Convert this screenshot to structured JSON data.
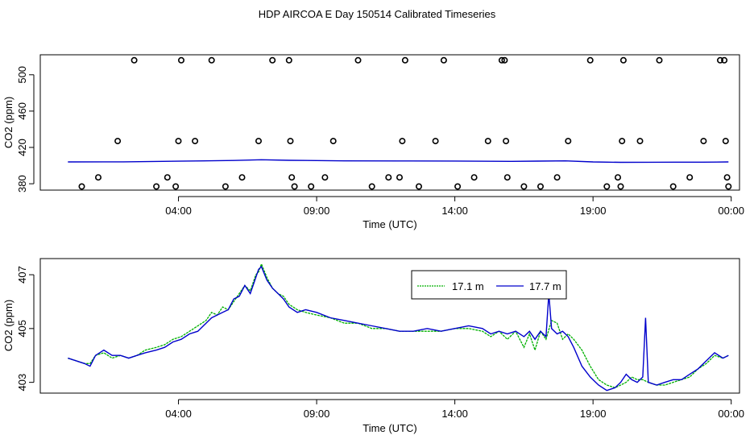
{
  "title": "HDP AIRCOA E  Day 150514  Calibrated Timeseries",
  "colors": {
    "series_green": "#00b000",
    "series_blue": "#0000cc",
    "axes": "#000000",
    "background": "#ffffff"
  },
  "chart_data": [
    {
      "type": "scatter",
      "title": "HDP AIRCOA E  Day 150514  Calibrated Timeseries",
      "xlabel": "Time (UTC)",
      "ylabel": "CO2 (ppm)",
      "x_unit": "hours UTC",
      "xlim": [
        -1.0,
        24.3
      ],
      "ylim": [
        373,
        522
      ],
      "xticks": [
        4,
        9,
        14,
        19,
        24
      ],
      "xtick_labels": [
        "04:00",
        "09:00",
        "14:00",
        "19:00",
        "00:00"
      ],
      "yticks": [
        380,
        420,
        460,
        500
      ],
      "ytick_labels": [
        "380",
        "420",
        "460",
        "500"
      ],
      "grid": false,
      "series": [
        {
          "marker": "open-circle",
          "x": [
            0.5,
            1.1,
            1.8,
            2.4,
            3.2,
            3.6,
            3.9,
            4.0,
            4.1,
            4.6,
            5.2,
            5.7,
            6.3,
            6.9,
            7.4,
            8.0,
            8.05,
            8.1,
            8.2,
            8.8,
            9.3,
            9.6,
            10.5,
            11.0,
            11.6,
            12.0,
            12.1,
            12.2,
            12.7,
            13.3,
            13.6,
            14.1,
            14.7,
            15.2,
            15.7,
            15.8,
            15.85,
            15.9,
            16.5,
            17.1,
            17.7,
            18.1,
            18.9,
            19.5,
            19.9,
            20.0,
            20.05,
            20.1,
            20.7,
            21.4,
            21.9,
            22.5,
            23.0,
            23.6,
            23.75,
            23.8,
            23.85,
            23.9
          ],
          "y": [
            377,
            387,
            427,
            516,
            377,
            387,
            377,
            427,
            516,
            427,
            516,
            377,
            387,
            427,
            516,
            516,
            427,
            387,
            377,
            377,
            387,
            427,
            516,
            377,
            387,
            387,
            427,
            516,
            377,
            427,
            516,
            377,
            387,
            427,
            516,
            516,
            427,
            387,
            377,
            377,
            387,
            427,
            516,
            377,
            387,
            377,
            427,
            516,
            427,
            516,
            377,
            387,
            427,
            516,
            516,
            427,
            387,
            377
          ]
        },
        {
          "type": "line",
          "x": [
            0.0,
            2.0,
            4.0,
            6.0,
            7.0,
            8.0,
            10.0,
            12.0,
            14.0,
            16.0,
            17.0,
            18.0,
            19.0,
            20.0,
            21.0,
            22.0,
            23.0,
            23.9
          ],
          "y": [
            404.0,
            404.1,
            404.8,
            405.6,
            406.4,
            405.8,
            405.2,
            405.1,
            405.0,
            404.7,
            404.9,
            405.2,
            404.0,
            403.6,
            403.7,
            403.8,
            403.8,
            404.0
          ]
        }
      ]
    },
    {
      "type": "line",
      "xlabel": "Time (UTC)",
      "ylabel": "CO2 (ppm)",
      "x_unit": "hours UTC",
      "xlim": [
        -1.0,
        24.3
      ],
      "ylim": [
        402.6,
        407.6
      ],
      "xticks": [
        4,
        9,
        14,
        19,
        24
      ],
      "xtick_labels": [
        "04:00",
        "09:00",
        "14:00",
        "19:00",
        "00:00"
      ],
      "yticks": [
        403,
        405,
        407
      ],
      "ytick_labels": [
        "403",
        "405",
        "407"
      ],
      "grid": false,
      "legend": {
        "placement": "top-center-right",
        "entries": [
          "17.1 m",
          "17.7 m"
        ]
      },
      "series": [
        {
          "name": "17.1 m",
          "x": [
            0.0,
            0.3,
            0.6,
            0.8,
            1.0,
            1.3,
            1.6,
            1.9,
            2.2,
            2.5,
            2.8,
            3.2,
            3.5,
            3.8,
            4.1,
            4.4,
            4.7,
            5.0,
            5.2,
            5.4,
            5.6,
            5.8,
            6.0,
            6.2,
            6.4,
            6.6,
            6.8,
            6.9,
            7.0,
            7.2,
            7.4,
            7.6,
            7.8,
            8.0,
            8.3,
            8.6,
            9.0,
            9.5,
            10.0,
            10.5,
            11.0,
            11.5,
            12.0,
            12.5,
            13.0,
            13.5,
            14.0,
            14.5,
            15.0,
            15.3,
            15.6,
            15.9,
            16.2,
            16.5,
            16.7,
            16.9,
            17.1,
            17.3,
            17.5,
            17.7,
            17.9,
            18.1,
            18.3,
            18.6,
            18.9,
            19.2,
            19.5,
            19.8,
            20.0,
            20.2,
            20.4,
            20.6,
            20.8,
            21.0,
            21.3,
            21.6,
            21.9,
            22.2,
            22.5,
            22.8,
            23.1,
            23.4,
            23.7,
            23.9
          ],
          "y": [
            403.9,
            403.8,
            403.7,
            403.7,
            404.0,
            404.1,
            403.9,
            404.0,
            403.9,
            404.0,
            404.2,
            404.3,
            404.4,
            404.6,
            404.7,
            404.9,
            405.1,
            405.3,
            405.6,
            405.5,
            405.8,
            405.7,
            406.0,
            406.3,
            406.6,
            406.4,
            407.0,
            407.1,
            407.4,
            406.9,
            406.5,
            406.3,
            406.2,
            405.9,
            405.7,
            405.6,
            405.5,
            405.4,
            405.2,
            405.2,
            405.0,
            405.0,
            404.9,
            404.9,
            404.9,
            404.9,
            405.0,
            405.0,
            404.9,
            404.7,
            404.9,
            404.6,
            404.9,
            404.3,
            404.8,
            404.2,
            404.9,
            404.6,
            405.3,
            405.2,
            404.6,
            404.8,
            404.6,
            404.2,
            403.6,
            403.1,
            402.9,
            402.8,
            402.9,
            403.0,
            403.2,
            403.1,
            403.1,
            403.0,
            402.9,
            402.9,
            403.0,
            403.1,
            403.2,
            403.5,
            403.7,
            404.0,
            403.9,
            404.0
          ]
        },
        {
          "name": "17.7 m",
          "x": [
            0.0,
            0.3,
            0.6,
            0.8,
            1.0,
            1.3,
            1.6,
            1.9,
            2.2,
            2.5,
            2.8,
            3.2,
            3.5,
            3.8,
            4.1,
            4.4,
            4.7,
            5.0,
            5.2,
            5.4,
            5.6,
            5.8,
            6.0,
            6.2,
            6.4,
            6.6,
            6.8,
            6.9,
            7.0,
            7.2,
            7.4,
            7.6,
            7.8,
            8.0,
            8.3,
            8.6,
            9.0,
            9.5,
            10.0,
            10.5,
            11.0,
            11.5,
            12.0,
            12.5,
            13.0,
            13.5,
            14.0,
            14.5,
            15.0,
            15.3,
            15.6,
            15.9,
            16.2,
            16.5,
            16.7,
            16.9,
            17.1,
            17.3,
            17.4,
            17.5,
            17.7,
            17.9,
            18.1,
            18.3,
            18.6,
            18.9,
            19.2,
            19.5,
            19.8,
            20.0,
            20.2,
            20.4,
            20.6,
            20.8,
            20.9,
            21.0,
            21.3,
            21.6,
            21.9,
            22.2,
            22.5,
            22.8,
            23.1,
            23.4,
            23.7,
            23.9
          ],
          "y": [
            403.9,
            403.8,
            403.7,
            403.6,
            404.0,
            404.2,
            404.0,
            404.0,
            403.9,
            404.0,
            404.1,
            404.2,
            404.3,
            404.5,
            404.6,
            404.8,
            404.9,
            405.2,
            405.4,
            405.5,
            405.6,
            405.7,
            406.1,
            406.2,
            406.6,
            406.3,
            406.9,
            407.2,
            407.3,
            406.8,
            406.5,
            406.3,
            406.1,
            405.8,
            405.6,
            405.7,
            405.6,
            405.4,
            405.3,
            405.2,
            405.1,
            405.0,
            404.9,
            404.9,
            405.0,
            404.9,
            405.0,
            405.1,
            405.0,
            404.8,
            404.9,
            404.8,
            404.9,
            404.7,
            404.9,
            404.6,
            404.9,
            404.7,
            406.3,
            405.0,
            404.8,
            404.9,
            404.7,
            404.3,
            403.6,
            403.2,
            402.9,
            402.7,
            402.8,
            403.0,
            403.3,
            403.1,
            403.0,
            403.2,
            405.4,
            403.0,
            402.9,
            403.0,
            403.1,
            403.1,
            403.3,
            403.5,
            403.8,
            404.1,
            403.9,
            404.0
          ]
        }
      ]
    }
  ]
}
